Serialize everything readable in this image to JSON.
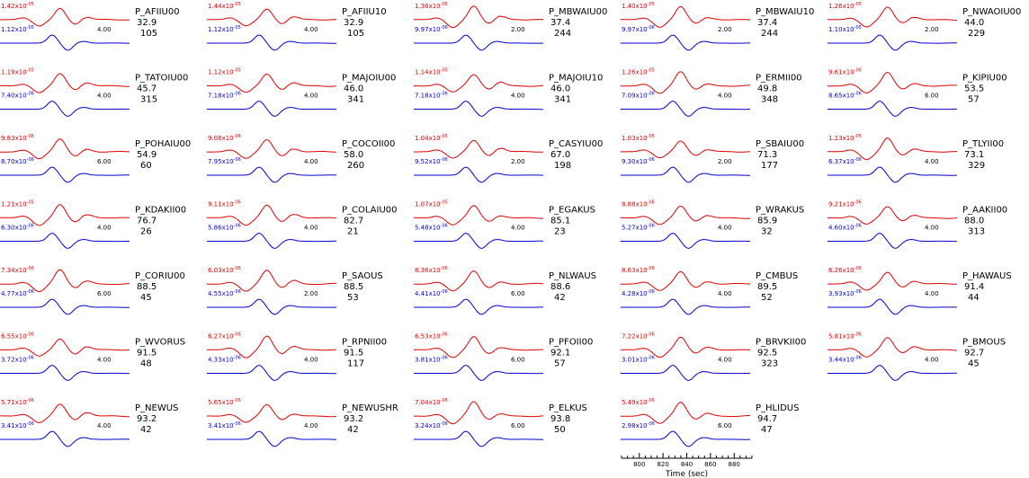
{
  "chart_data": {
    "type": "line",
    "colors": {
      "observed": "#e00000",
      "synthetic": "#0000d0"
    },
    "panels": [
      {
        "station": "P_AFIIU00",
        "distance": "32.9",
        "azimuth": "105",
        "amp_obs": [
          "1.42",
          "-05"
        ],
        "amp_syn": [
          "1.12",
          "-05"
        ],
        "shift": "4.00"
      },
      {
        "station": "P_AFIIU10",
        "distance": "32.9",
        "azimuth": "105",
        "amp_obs": [
          "1.44",
          "-05"
        ],
        "amp_syn": [
          "1.12",
          "-05"
        ],
        "shift": "4.00"
      },
      {
        "station": "P_MBWAIU00",
        "distance": "37.4",
        "azimuth": "244",
        "amp_obs": [
          "1.36",
          "-05"
        ],
        "amp_syn": [
          "9.97",
          "-06"
        ],
        "shift": "2.00"
      },
      {
        "station": "P_MBWAIU10",
        "distance": "37.4",
        "azimuth": "244",
        "amp_obs": [
          "1.40",
          "-05"
        ],
        "amp_syn": [
          "9.97",
          "-06"
        ],
        "shift": "2.00"
      },
      {
        "station": "P_NWAOIU00",
        "distance": "44.0",
        "azimuth": "229",
        "amp_obs": [
          "1.26",
          "-05"
        ],
        "amp_syn": [
          "1.10",
          "-05"
        ],
        "shift": "2.00"
      },
      {
        "station": "P_TATOIU00",
        "distance": "45.7",
        "azimuth": "315",
        "amp_obs": [
          "1.19",
          "-05"
        ],
        "amp_syn": [
          "7.40",
          "-06"
        ],
        "shift": "4.00"
      },
      {
        "station": "P_MAJOIU00",
        "distance": "46.0",
        "azimuth": "341",
        "amp_obs": [
          "1.12",
          "-05"
        ],
        "amp_syn": [
          "7.18",
          "-06"
        ],
        "shift": "4.00"
      },
      {
        "station": "P_MAJOIU10",
        "distance": "46.0",
        "azimuth": "341",
        "amp_obs": [
          "1.14",
          "-05"
        ],
        "amp_syn": [
          "7.18",
          "-06"
        ],
        "shift": "4.00"
      },
      {
        "station": "P_ERMII00",
        "distance": "49.8",
        "azimuth": "348",
        "amp_obs": [
          "1.26",
          "-05"
        ],
        "amp_syn": [
          "7.09",
          "-06"
        ],
        "shift": "4.00"
      },
      {
        "station": "P_KIPIU00",
        "distance": "53.5",
        "azimuth": "57",
        "amp_obs": [
          "9.61",
          "-06"
        ],
        "amp_syn": [
          "8.65",
          "-06"
        ],
        "shift": "6.00"
      },
      {
        "station": "P_POHAIU00",
        "distance": "54.9",
        "azimuth": "60",
        "amp_obs": [
          "9.83",
          "-06"
        ],
        "amp_syn": [
          "8.70",
          "-06"
        ],
        "shift": "6.00"
      },
      {
        "station": "P_COCOII00",
        "distance": "58.0",
        "azimuth": "260",
        "amp_obs": [
          "9.08",
          "-06"
        ],
        "amp_syn": [
          "7.95",
          "-06"
        ],
        "shift": "4.00"
      },
      {
        "station": "P_CASYIU00",
        "distance": "67.0",
        "azimuth": "198",
        "amp_obs": [
          "1.04",
          "-05"
        ],
        "amp_syn": [
          "9.52",
          "-06"
        ],
        "shift": "2.00"
      },
      {
        "station": "P_SBAIU00",
        "distance": "71.3",
        "azimuth": "177",
        "amp_obs": [
          "1.03",
          "-05"
        ],
        "amp_syn": [
          "9.30",
          "-06"
        ],
        "shift": "2.00"
      },
      {
        "station": "P_TLYII00",
        "distance": "73.1",
        "azimuth": "329",
        "amp_obs": [
          "1.13",
          "-05"
        ],
        "amp_syn": [
          "6.37",
          "-06"
        ],
        "shift": "4.00"
      },
      {
        "station": "P_KDAKII00",
        "distance": "76.7",
        "azimuth": "26",
        "amp_obs": [
          "1.21",
          "-05"
        ],
        "amp_syn": [
          "6.30",
          "-06"
        ],
        "shift": "4.00"
      },
      {
        "station": "P_COLAIU00",
        "distance": "82.7",
        "azimuth": "21",
        "amp_obs": [
          "9.11",
          "-06"
        ],
        "amp_syn": [
          "5.86",
          "-06"
        ],
        "shift": "4.00"
      },
      {
        "station": "P_EGAKUS",
        "distance": "85.1",
        "azimuth": "23",
        "amp_obs": [
          "1.07",
          "-05"
        ],
        "amp_syn": [
          "5.48",
          "-06"
        ],
        "shift": "4.00"
      },
      {
        "station": "P_WRAKUS",
        "distance": "85.9",
        "azimuth": "32",
        "amp_obs": [
          "8.88",
          "-06"
        ],
        "amp_syn": [
          "5.27",
          "-06"
        ],
        "shift": "4.00"
      },
      {
        "station": "P_AAKII00",
        "distance": "88.0",
        "azimuth": "313",
        "amp_obs": [
          "9.21",
          "-06"
        ],
        "amp_syn": [
          "4.60",
          "-06"
        ],
        "shift": "4.00"
      },
      {
        "station": "P_CORIU00",
        "distance": "88.5",
        "azimuth": "45",
        "amp_obs": [
          "7.34",
          "-06"
        ],
        "amp_syn": [
          "4.77",
          "-06"
        ],
        "shift": "6.00"
      },
      {
        "station": "P_SAOUS",
        "distance": "88.5",
        "azimuth": "53",
        "amp_obs": [
          "6.03",
          "-06"
        ],
        "amp_syn": [
          "4.55",
          "-06"
        ],
        "shift": "2.00"
      },
      {
        "station": "P_NLWAUS",
        "distance": "88.6",
        "azimuth": "42",
        "amp_obs": [
          "8.36",
          "-06"
        ],
        "amp_syn": [
          "4.41",
          "-06"
        ],
        "shift": "6.00"
      },
      {
        "station": "P_CMBUS",
        "distance": "89.5",
        "azimuth": "52",
        "amp_obs": [
          "8.63",
          "-06"
        ],
        "amp_syn": [
          "4.28",
          "-06"
        ],
        "shift": "4.00"
      },
      {
        "station": "P_HAWAUS",
        "distance": "91.4",
        "azimuth": "44",
        "amp_obs": [
          "6.26",
          "-06"
        ],
        "amp_syn": [
          "3.93",
          "-06"
        ],
        "shift": "4.00"
      },
      {
        "station": "P_WVORUS",
        "distance": "91.5",
        "azimuth": "48",
        "amp_obs": [
          "6.55",
          "-06"
        ],
        "amp_syn": [
          "3.72",
          "-06"
        ],
        "shift": "4.00"
      },
      {
        "station": "P_RPNII00",
        "distance": "91.5",
        "azimuth": "117",
        "amp_obs": [
          "6.27",
          "-06"
        ],
        "amp_syn": [
          "4.33",
          "-06"
        ],
        "shift": "4.00"
      },
      {
        "station": "P_PFOII00",
        "distance": "92.1",
        "azimuth": "57",
        "amp_obs": [
          "6.53",
          "-06"
        ],
        "amp_syn": [
          "3.81",
          "-06"
        ],
        "shift": "6.00"
      },
      {
        "station": "P_BRVKII00",
        "distance": "92.5",
        "azimuth": "323",
        "amp_obs": [
          "7.22",
          "-06"
        ],
        "amp_syn": [
          "3.01",
          "-06"
        ],
        "shift": "4.00"
      },
      {
        "station": "P_BMOUS",
        "distance": "92.7",
        "azimuth": "45",
        "amp_obs": [
          "5.81",
          "-06"
        ],
        "amp_syn": [
          "3.44",
          "-06"
        ],
        "shift": "4.00"
      },
      {
        "station": "P_NEWUS",
        "distance": "93.2",
        "azimuth": "42",
        "amp_obs": [
          "5.71",
          "-06"
        ],
        "amp_syn": [
          "3.41",
          "-06"
        ],
        "shift": "4.00"
      },
      {
        "station": "P_NEWUSHR",
        "distance": "93.2",
        "azimuth": "42",
        "amp_obs": [
          "5.65",
          "-06"
        ],
        "amp_syn": [
          "3.41",
          "-06"
        ],
        "shift": "4.00"
      },
      {
        "station": "P_ELKUS",
        "distance": "93.8",
        "azimuth": "50",
        "amp_obs": [
          "7.04",
          "-06"
        ],
        "amp_syn": [
          "3.24",
          "-06"
        ],
        "shift": "6.00"
      },
      {
        "station": "P_HLIDUS",
        "distance": "94.7",
        "azimuth": "47",
        "amp_obs": [
          "5.49",
          "-06"
        ],
        "amp_syn": [
          "2.98",
          "-06"
        ],
        "shift": "6.00"
      }
    ],
    "time_axis": {
      "xlabel": "Time (sec)",
      "tick_labels": [
        "800",
        "820",
        "840",
        "860",
        "880"
      ],
      "xlim": [
        785,
        895
      ]
    }
  }
}
